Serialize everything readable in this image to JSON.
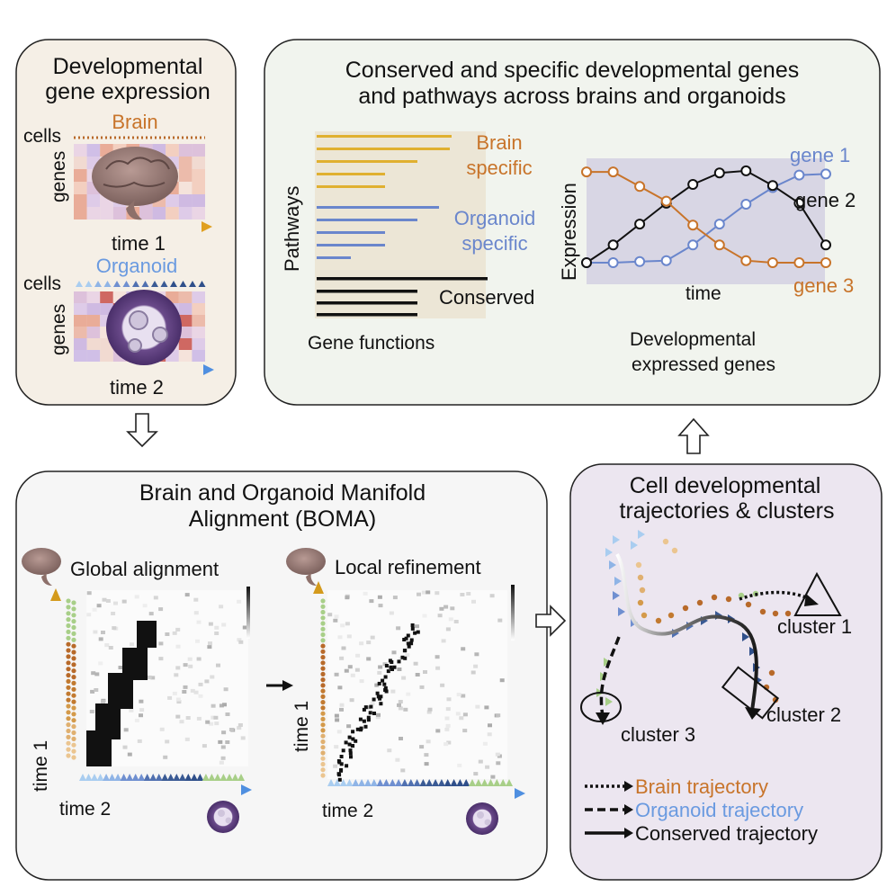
{
  "colors": {
    "brain": "#c8742a",
    "organoid": "#6a8fd0",
    "gold": "#e0b030",
    "blue_bar": "#6a86cc",
    "panel_beige": "#f5efe6",
    "panel_green": "#f1f4ee",
    "panel_purple": "#ece6f0",
    "tri_light": "#a9cdf0",
    "tri_mid": "#6f8fd0",
    "tri_dark": "#2f4f8a",
    "tri_green": "#a8cf88"
  },
  "panel_top_left": {
    "title_line1": "Developmental",
    "title_line2": "gene expression",
    "cells_label_1": "cells",
    "brain_label": "Brain",
    "genes_label_1": "genes",
    "time1_label": "time 1",
    "cells_label_2": "cells",
    "organoid_label": "Organoid",
    "genes_label_2": "genes",
    "time2_label": "time 2"
  },
  "panel_top_right": {
    "title_line1": "Conserved and specific developmental genes",
    "title_line2": "and pathways across brains and organoids",
    "pathways_label": "Pathways",
    "brain_specific_1": "Brain",
    "brain_specific_2": "specific",
    "organoid_specific_1": "Organoid",
    "organoid_specific_2": "specific",
    "conserved_label": "Conserved",
    "gene_functions_label": "Gene functions",
    "expression_label": "Expression",
    "time_label": "time",
    "gene1_label": "gene 1",
    "gene2_label": "gene 2",
    "gene3_label": "gene 3",
    "dev_genes_line1": "Developmental",
    "dev_genes_line2": "expressed genes"
  },
  "panel_bottom_left": {
    "title_line1": "Brain and Organoid Manifold",
    "title_line2": "Alignment (BOMA)",
    "global_label": "Global alignment",
    "local_label": "Local refinement",
    "time1_left": "time 1",
    "time2_left": "time 2",
    "time1_right": "time 1",
    "time2_right": "time 2"
  },
  "panel_bottom_right": {
    "title_line1": "Cell developmental",
    "title_line2": "trajectories & clusters",
    "cluster1_label": "cluster 1",
    "cluster2_label": "cluster 2",
    "cluster3_label": "cluster 3",
    "legend_brain": "Brain trajectory",
    "legend_organoid": "Organoid trajectory",
    "legend_conserved": "Conserved trajectory"
  },
  "chart_data": {
    "type": "line",
    "title": "",
    "xlabel": "time",
    "ylabel": "Expression",
    "x": [
      0,
      1,
      2,
      3,
      4,
      5,
      6,
      7,
      8,
      9
    ],
    "ylim": [
      0,
      1
    ],
    "series": [
      {
        "name": "gene 1",
        "values": [
          0.0,
          0.0,
          0.01,
          0.02,
          0.17,
          0.37,
          0.56,
          0.72,
          0.84,
          0.85
        ]
      },
      {
        "name": "gene 2",
        "values": [
          0.0,
          0.17,
          0.37,
          0.57,
          0.75,
          0.86,
          0.88,
          0.74,
          0.57,
          0.17
        ]
      },
      {
        "name": "gene 3",
        "values": [
          0.87,
          0.87,
          0.73,
          0.59,
          0.36,
          0.17,
          0.02,
          0.0,
          0.0,
          0.0
        ]
      }
    ]
  }
}
